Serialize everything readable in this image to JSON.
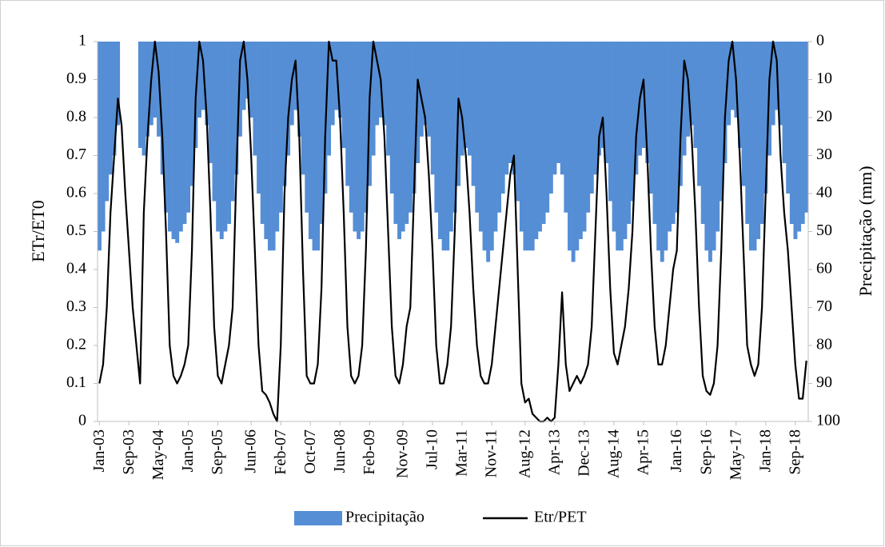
{
  "chart_data": {
    "type": "combo",
    "y_label": "ETr/ET0",
    "y2_label": "Precipitação (mm)",
    "ylim": [
      0,
      1
    ],
    "yticks": [
      0,
      0.1,
      0.2,
      0.3,
      0.4,
      0.5,
      0.6,
      0.7,
      0.8,
      0.9,
      1
    ],
    "y2lim": [
      100,
      0
    ],
    "y2ticks": [
      100,
      90,
      80,
      70,
      60,
      50,
      40,
      30,
      20,
      10,
      0
    ],
    "legend": "bottom",
    "categories": [
      "Jan-03",
      null,
      null,
      null,
      null,
      null,
      null,
      null,
      "Sep-03",
      null,
      null,
      null,
      null,
      null,
      null,
      null,
      "May-04",
      null,
      null,
      null,
      null,
      null,
      null,
      null,
      "Jan-05",
      null,
      null,
      null,
      null,
      null,
      null,
      null,
      "Sep-05",
      null,
      null,
      null,
      null,
      null,
      null,
      null,
      null,
      "Jun-06",
      null,
      null,
      null,
      null,
      null,
      null,
      null,
      "Feb-07",
      null,
      null,
      null,
      null,
      null,
      null,
      null,
      "Oct-07",
      null,
      null,
      null,
      null,
      null,
      null,
      null,
      "Jun-08",
      null,
      null,
      null,
      null,
      null,
      null,
      null,
      "Feb-09",
      null,
      null,
      null,
      null,
      null,
      null,
      null,
      null,
      "Nov-09",
      null,
      null,
      null,
      null,
      null,
      null,
      null,
      "Jul-10",
      null,
      null,
      null,
      null,
      null,
      null,
      null,
      "Mar-11",
      null,
      null,
      null,
      null,
      null,
      null,
      null,
      "Nov-11",
      null,
      null,
      null,
      null,
      null,
      null,
      null,
      null,
      "Aug-12",
      null,
      null,
      null,
      null,
      null,
      null,
      null,
      "Apr-13",
      null,
      null,
      null,
      null,
      null,
      null,
      null,
      "Dec-13",
      null,
      null,
      null,
      null,
      null,
      null,
      null,
      "Aug-14",
      null,
      null,
      null,
      null,
      null,
      null,
      null,
      "Apr-15",
      null,
      null,
      null,
      null,
      null,
      null,
      null,
      null,
      "Jan-16",
      null,
      null,
      null,
      null,
      null,
      null,
      null,
      "Sep-16",
      null,
      null,
      null,
      null,
      null,
      null,
      null,
      "May-17",
      null,
      null,
      null,
      null,
      null,
      null,
      null,
      "Jan-18",
      null,
      null,
      null,
      null,
      null,
      null,
      null,
      "Sep-18",
      null,
      null,
      null
    ],
    "series": [
      {
        "name": "Precipitação",
        "type": "bar",
        "axis": "y2",
        "color": "#558ed5",
        "values": [
          55,
          50,
          42,
          35,
          30,
          22,
          null,
          null,
          null,
          null,
          null,
          28,
          30,
          25,
          22,
          20,
          25,
          35,
          45,
          50,
          52,
          53,
          50,
          48,
          45,
          38,
          28,
          20,
          18,
          22,
          32,
          42,
          50,
          52,
          50,
          48,
          42,
          35,
          25,
          18,
          15,
          20,
          30,
          40,
          48,
          52,
          55,
          55,
          50,
          45,
          38,
          30,
          22,
          18,
          25,
          35,
          45,
          52,
          55,
          55,
          48,
          40,
          30,
          22,
          18,
          20,
          28,
          38,
          45,
          50,
          52,
          50,
          45,
          38,
          30,
          22,
          20,
          22,
          30,
          40,
          48,
          52,
          50,
          48,
          45,
          40,
          32,
          25,
          22,
          25,
          35,
          45,
          52,
          55,
          55,
          50,
          45,
          38,
          30,
          28,
          30,
          38,
          45,
          50,
          55,
          58,
          55,
          50,
          45,
          40,
          35,
          32,
          35,
          42,
          50,
          55,
          55,
          55,
          52,
          50,
          48,
          45,
          40,
          35,
          32,
          35,
          45,
          55,
          58,
          55,
          52,
          50,
          45,
          40,
          35,
          30,
          28,
          32,
          42,
          50,
          55,
          55,
          52,
          48,
          42,
          35,
          30,
          28,
          32,
          40,
          48,
          55,
          58,
          55,
          50,
          48,
          45,
          38,
          30,
          25,
          22,
          28,
          38,
          48,
          55,
          58,
          55,
          50,
          42,
          32,
          22,
          18,
          20,
          28,
          38,
          48,
          55,
          55,
          52,
          48,
          40,
          30,
          22,
          18,
          22,
          32,
          40,
          48,
          52,
          50,
          48,
          45
        ]
      },
      {
        "name": "Etr/PET",
        "type": "line",
        "color": "#000000",
        "values": [
          0.1,
          0.15,
          0.3,
          0.55,
          0.7,
          0.85,
          0.78,
          0.6,
          0.45,
          0.3,
          0.2,
          0.1,
          0.55,
          0.75,
          0.9,
          1.0,
          0.92,
          0.75,
          0.5,
          0.2,
          0.12,
          0.1,
          0.12,
          0.15,
          0.2,
          0.45,
          0.85,
          1.0,
          0.95,
          0.8,
          0.55,
          0.25,
          0.12,
          0.1,
          0.15,
          0.2,
          0.3,
          0.65,
          0.95,
          1.0,
          0.9,
          0.7,
          0.45,
          0.2,
          0.08,
          0.07,
          0.05,
          0.02,
          0.0,
          0.2,
          0.6,
          0.8,
          0.9,
          0.95,
          0.75,
          0.4,
          0.12,
          0.1,
          0.1,
          0.15,
          0.35,
          0.75,
          1.0,
          0.95,
          0.95,
          0.8,
          0.55,
          0.25,
          0.12,
          0.1,
          0.12,
          0.2,
          0.45,
          0.85,
          1.0,
          0.95,
          0.9,
          0.75,
          0.5,
          0.25,
          0.12,
          0.1,
          0.15,
          0.25,
          0.3,
          0.6,
          0.9,
          0.85,
          0.8,
          0.65,
          0.45,
          0.2,
          0.1,
          0.1,
          0.15,
          0.25,
          0.5,
          0.85,
          0.8,
          0.7,
          0.55,
          0.35,
          0.2,
          0.12,
          0.1,
          0.1,
          0.15,
          0.25,
          0.35,
          0.45,
          0.55,
          0.65,
          0.7,
          0.4,
          0.1,
          0.05,
          0.06,
          0.02,
          0.01,
          0.0,
          0.0,
          0.01,
          0.0,
          0.01,
          0.15,
          0.34,
          0.15,
          0.08,
          0.1,
          0.12,
          0.1,
          0.12,
          0.15,
          0.25,
          0.5,
          0.75,
          0.8,
          0.6,
          0.35,
          0.18,
          0.15,
          0.2,
          0.25,
          0.35,
          0.5,
          0.75,
          0.85,
          0.9,
          0.7,
          0.45,
          0.25,
          0.15,
          0.15,
          0.2,
          0.3,
          0.4,
          0.45,
          0.75,
          0.95,
          0.9,
          0.75,
          0.55,
          0.3,
          0.12,
          0.08,
          0.07,
          0.1,
          0.2,
          0.45,
          0.8,
          0.95,
          1.0,
          0.9,
          0.7,
          0.45,
          0.2,
          0.15,
          0.12,
          0.15,
          0.3,
          0.6,
          0.9,
          1.0,
          0.95,
          0.7,
          0.55,
          0.45,
          0.3,
          0.15,
          0.06,
          0.06,
          0.16
        ]
      }
    ]
  }
}
